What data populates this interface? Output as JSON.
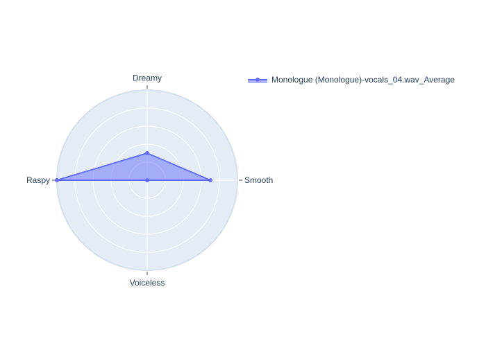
{
  "chart_data": {
    "type": "radar",
    "axes": [
      "Dreamy",
      "Smooth",
      "Voiceless",
      "Raspy"
    ],
    "series": [
      {
        "name": "Monologue (Monologue)-vocals_04.wav_Average",
        "values": [
          0.3,
          0.7,
          0.0,
          1.0
        ],
        "color": "#636efa"
      }
    ],
    "rlim": [
      0,
      1
    ],
    "grid": true,
    "legend": "top-right"
  },
  "colors": {
    "polar_bg": "#e5ecf6",
    "grid": "#ffffff",
    "text": "#2a3f5f",
    "series": "#636efa"
  }
}
